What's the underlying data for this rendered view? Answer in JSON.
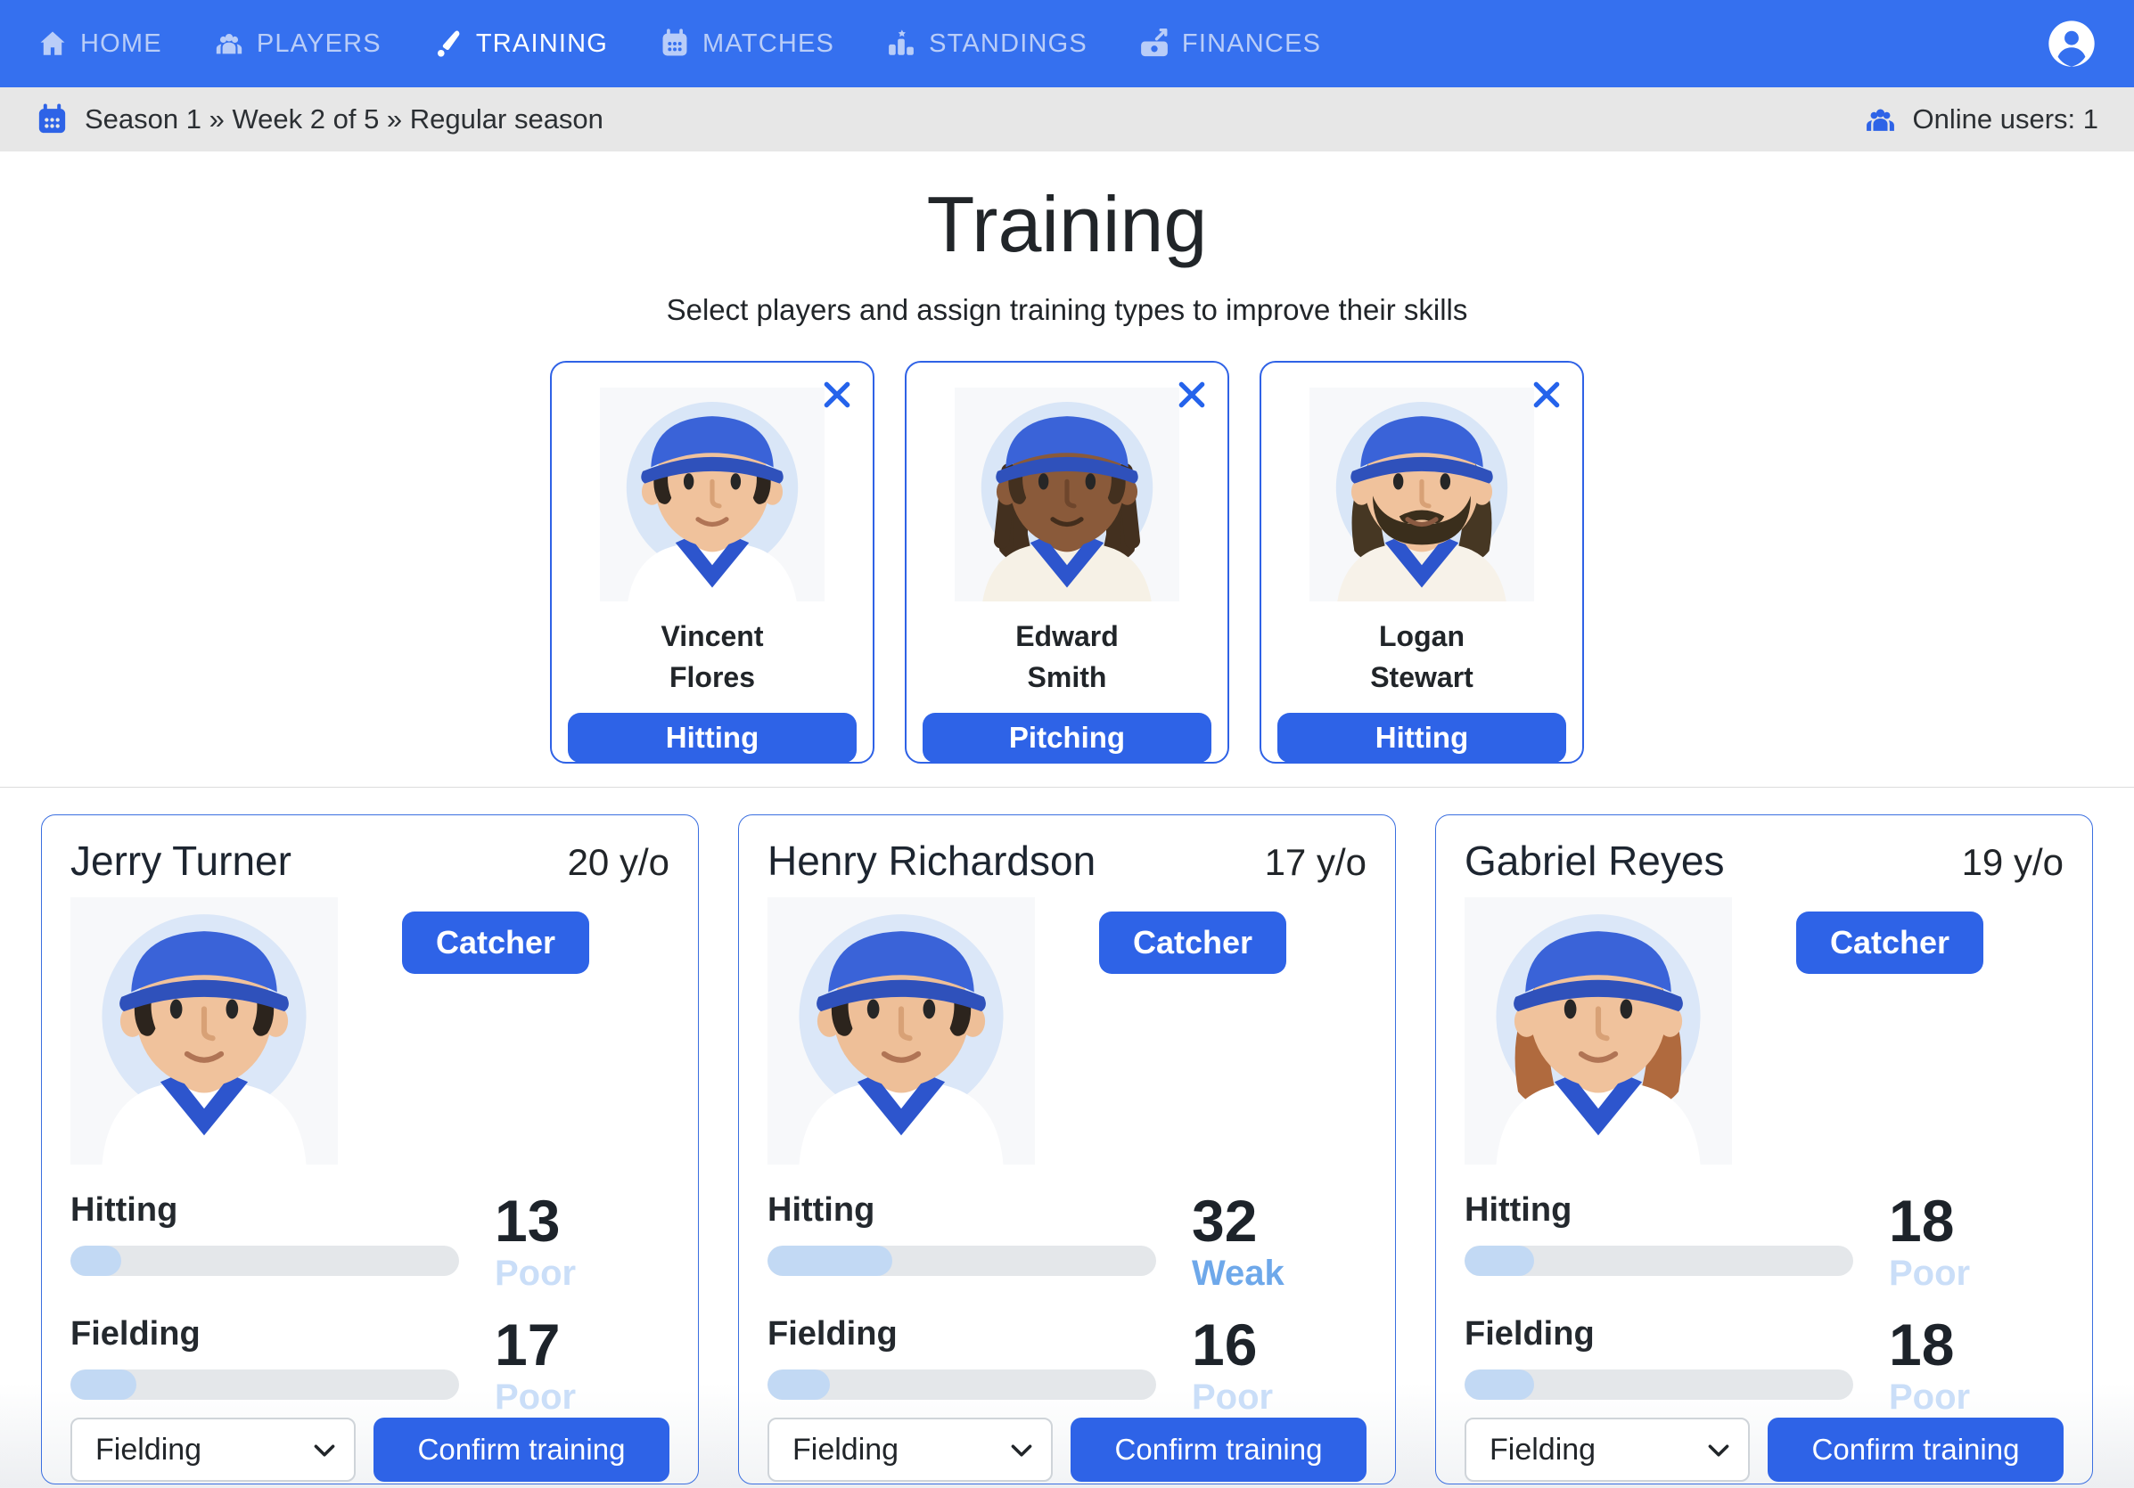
{
  "nav": {
    "items": [
      {
        "label": "HOME",
        "icon": "home-icon"
      },
      {
        "label": "PLAYERS",
        "icon": "players-icon"
      },
      {
        "label": "TRAINING",
        "icon": "baseball-bat-icon",
        "active": true
      },
      {
        "label": "MATCHES",
        "icon": "calendar-icon"
      },
      {
        "label": "STANDINGS",
        "icon": "standings-icon"
      },
      {
        "label": "FINANCES",
        "icon": "finances-icon"
      }
    ]
  },
  "statusbar": {
    "breadcrumb": "Season 1 » Week 2 of 5 » Regular season",
    "online_users": "Online users: 1"
  },
  "header": {
    "title": "Training",
    "subtitle": "Select players and assign training types to improve their skills"
  },
  "selected_players": [
    {
      "first_name": "Vincent",
      "last_name": "Flores",
      "training": "Hitting",
      "avatar": {
        "bg": "#d9e6f7",
        "skin": "#f0c29c",
        "hair": "#2d251e",
        "cap": "#3a63d8",
        "capbrim": "#2f51bb",
        "jersey": "#ffffff",
        "collar": "#2d55cd",
        "sidehair": "#2d251e",
        "dreads": "transparent",
        "longhair": "transparent",
        "beard": "transparent",
        "nose": "#d8a176",
        "mouth": "#b07455"
      }
    },
    {
      "first_name": "Edward",
      "last_name": "Smith",
      "training": "Pitching",
      "avatar": {
        "bg": "#d9e6f7",
        "skin": "#8a5a3a",
        "hair": "#241b12",
        "cap": "#3a63d8",
        "capbrim": "#2f51bb",
        "jersey": "#f6f1e6",
        "collar": "#2d55cd",
        "sidehair": "#43301f",
        "dreads": "#43301f",
        "longhair": "#43301f",
        "beard": "transparent",
        "nose": "#6e462c",
        "mouth": "#432d1c"
      }
    },
    {
      "first_name": "Logan",
      "last_name": "Stewart",
      "training": "Hitting",
      "avatar": {
        "bg": "#d9e6f7",
        "skin": "#f0c29c",
        "hair": "#3c2f1e",
        "cap": "#3a63d8",
        "capbrim": "#2f51bb",
        "jersey": "#f7f2e9",
        "collar": "#2d55cd",
        "sidehair": "transparent",
        "dreads": "transparent",
        "longhair": "#463723",
        "beard": "#3a2e1c",
        "nose": "#d8a176",
        "mouth": "#8a5a41"
      }
    }
  ],
  "roster": [
    {
      "name": "Jerry Turner",
      "age": "20 y/o",
      "position": "Catcher",
      "skills": [
        {
          "label": "Hitting",
          "value": 13,
          "rating": "Poor"
        },
        {
          "label": "Fielding",
          "value": 17,
          "rating": "Poor"
        }
      ],
      "training_select": "Fielding",
      "confirm_label": "Confirm training",
      "avatar": {
        "bg": "#dbe7f8",
        "skin": "#f0c29c",
        "hair": "#2c241d",
        "cap": "#3a63d8",
        "capbrim": "#2f51bb",
        "jersey": "#ffffff",
        "collar": "#2d55cd",
        "sidehair": "#2c241d",
        "dreads": "transparent",
        "longhair": "transparent",
        "beard": "transparent",
        "nose": "#d8a176",
        "mouth": "#b07455"
      }
    },
    {
      "name": "Henry Richardson",
      "age": "17 y/o",
      "position": "Catcher",
      "skills": [
        {
          "label": "Hitting",
          "value": 32,
          "rating": "Weak"
        },
        {
          "label": "Fielding",
          "value": 16,
          "rating": "Poor"
        }
      ],
      "training_select": "Fielding",
      "confirm_label": "Confirm training",
      "avatar": {
        "bg": "#dbe7f8",
        "skin": "#eebf98",
        "hair": "#2c241d",
        "cap": "#3a63d8",
        "capbrim": "#2f51bb",
        "jersey": "#ffffff",
        "collar": "#2d55cd",
        "sidehair": "#2c241d",
        "dreads": "transparent",
        "longhair": "transparent",
        "beard": "transparent",
        "nose": "#d8a176",
        "mouth": "#b07455"
      }
    },
    {
      "name": "Gabriel Reyes",
      "age": "19 y/o",
      "position": "Catcher",
      "skills": [
        {
          "label": "Hitting",
          "value": 18,
          "rating": "Poor"
        },
        {
          "label": "Fielding",
          "value": 18,
          "rating": "Poor"
        }
      ],
      "training_select": "Fielding",
      "confirm_label": "Confirm training",
      "avatar": {
        "bg": "#dbe7f8",
        "skin": "#f0c29c",
        "hair": "#a05f35",
        "cap": "#3a63d8",
        "capbrim": "#2f51bb",
        "jersey": "#ffffff",
        "collar": "#2d55cd",
        "sidehair": "transparent",
        "dreads": "transparent",
        "longhair": "#b06a3e",
        "beard": "transparent",
        "nose": "#d8a176",
        "mouth": "#b07455"
      }
    }
  ],
  "colors": {
    "navbar": "#3570ef",
    "primary": "#2e63e7",
    "rating_poor": "#cadef8",
    "rating_weak": "#6ea8ea",
    "bar_track": "#e4e7ea",
    "bar_fill": "#c2d9f4"
  }
}
